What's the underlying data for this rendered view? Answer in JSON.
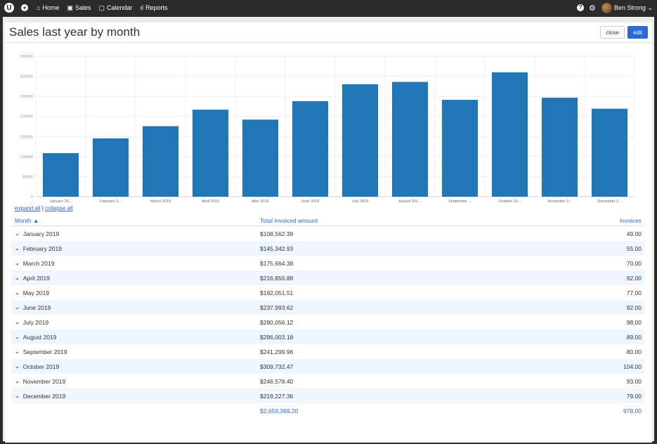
{
  "nav": {
    "logo": "U",
    "items": [
      {
        "icon": "home-icon",
        "glyph": "⌂",
        "label": "Home"
      },
      {
        "icon": "sales-icon",
        "glyph": "▣",
        "label": "Sales"
      },
      {
        "icon": "calendar-icon",
        "glyph": "▢",
        "label": "Calendar"
      },
      {
        "icon": "reports-icon",
        "glyph": "ıl",
        "label": "Reports"
      }
    ],
    "user_name": "Ben Strong"
  },
  "page": {
    "title": "Sales last year by month",
    "close_label": "close",
    "edit_label": "edit"
  },
  "links": {
    "expand": "expand all",
    "separator": "|",
    "collapse": "collapse all"
  },
  "table": {
    "headers": {
      "month": "Month ▲",
      "amount": "Total invoiced amount",
      "invoices": "Invoices"
    },
    "rows": [
      {
        "month": "January 2019",
        "amount": "$108,562.39",
        "invoices": "49.00"
      },
      {
        "month": "February 2019",
        "amount": "$145,342.93",
        "invoices": "55.00"
      },
      {
        "month": "March 2019",
        "amount": "$175,664.38",
        "invoices": "70.00"
      },
      {
        "month": "April 2019",
        "amount": "$216,856.88",
        "invoices": "92.00"
      },
      {
        "month": "May 2019",
        "amount": "$192,051.51",
        "invoices": "77.00"
      },
      {
        "month": "June 2019",
        "amount": "$237,993.62",
        "invoices": "92.00"
      },
      {
        "month": "July 2019",
        "amount": "$280,056.12",
        "invoices": "98.00"
      },
      {
        "month": "August 2019",
        "amount": "$286,003.18",
        "invoices": "89.00"
      },
      {
        "month": "September 2019",
        "amount": "$241,299.96",
        "invoices": "80.00"
      },
      {
        "month": "October 2019",
        "amount": "$309,732.47",
        "invoices": "104.00"
      },
      {
        "month": "November 2019",
        "amount": "$246,578.40",
        "invoices": "93.00"
      },
      {
        "month": "December 2019",
        "amount": "$219,227.36",
        "invoices": "79.00"
      }
    ],
    "total_amount": "$2,659,369.20",
    "total_invoices": "978.00"
  },
  "chart_data": {
    "type": "bar",
    "categories": [
      "January 20...",
      "February 2...",
      "March 2019",
      "April 2019",
      "May 2019",
      "June 2019",
      "July 2019",
      "August 201...",
      "September ...",
      "October 20...",
      "November 2...",
      "December 2..."
    ],
    "values": [
      108562.39,
      145342.93,
      175664.38,
      216856.88,
      192051.51,
      237993.62,
      280056.12,
      286003.18,
      241299.96,
      309732.47,
      246578.4,
      219227.36
    ],
    "ylim": [
      0,
      350000
    ],
    "yticks": [
      "0",
      "50000",
      "100000",
      "150000",
      "200000",
      "250000",
      "300000",
      "350000"
    ],
    "bar_color": "#2176b5",
    "grid": true
  }
}
